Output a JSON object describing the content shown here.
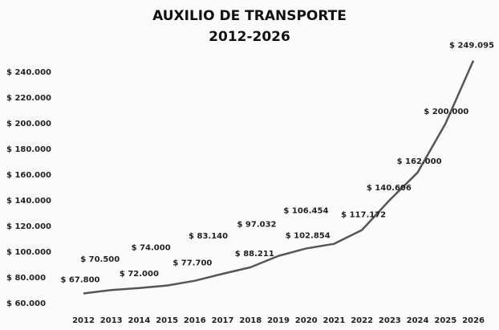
{
  "chart_data": {
    "type": "line",
    "title": "AUXILIO DE TRANSPORTE",
    "subtitle": "2012-2026",
    "categories": [
      "2012",
      "2013",
      "2014",
      "2015",
      "2016",
      "2017",
      "2018",
      "2019",
      "2020",
      "2021",
      "2022",
      "2023",
      "2024",
      "2025",
      "2026"
    ],
    "values": [
      67800,
      70500,
      72000,
      74000,
      77700,
      83140,
      88211,
      97032,
      102854,
      106454,
      117172,
      140606,
      162000,
      200000,
      249095
    ],
    "value_labels": [
      "$ 67.800",
      "$ 70.500",
      "$ 72.000",
      "$ 74.000",
      "$ 77.700",
      "$ 83.140",
      "$ 88.211",
      "$ 97.032",
      "$ 102.854",
      "$ 106.454",
      "$ 117.172",
      "$ 140.606",
      "$ 162.000",
      "$ 200.000",
      "$ 249.095"
    ],
    "color": "#555555",
    "ylim": [
      60000,
      250000
    ],
    "yticks": [
      {
        "value": 60000,
        "label": "$ 60.000"
      },
      {
        "value": 80000,
        "label": "$ 80.000"
      },
      {
        "value": 100000,
        "label": "$ 100.000"
      },
      {
        "value": 120000,
        "label": "$ 120.000"
      },
      {
        "value": 140000,
        "label": "$ 140.000"
      },
      {
        "value": 160000,
        "label": "$ 160.000"
      },
      {
        "value": 180000,
        "label": "$ 180.000"
      },
      {
        "value": 200000,
        "label": "$ 200.000"
      },
      {
        "value": 220000,
        "label": "$ 220.000"
      },
      {
        "value": 240000,
        "label": "$ 240.000"
      }
    ],
    "grid": false
  }
}
